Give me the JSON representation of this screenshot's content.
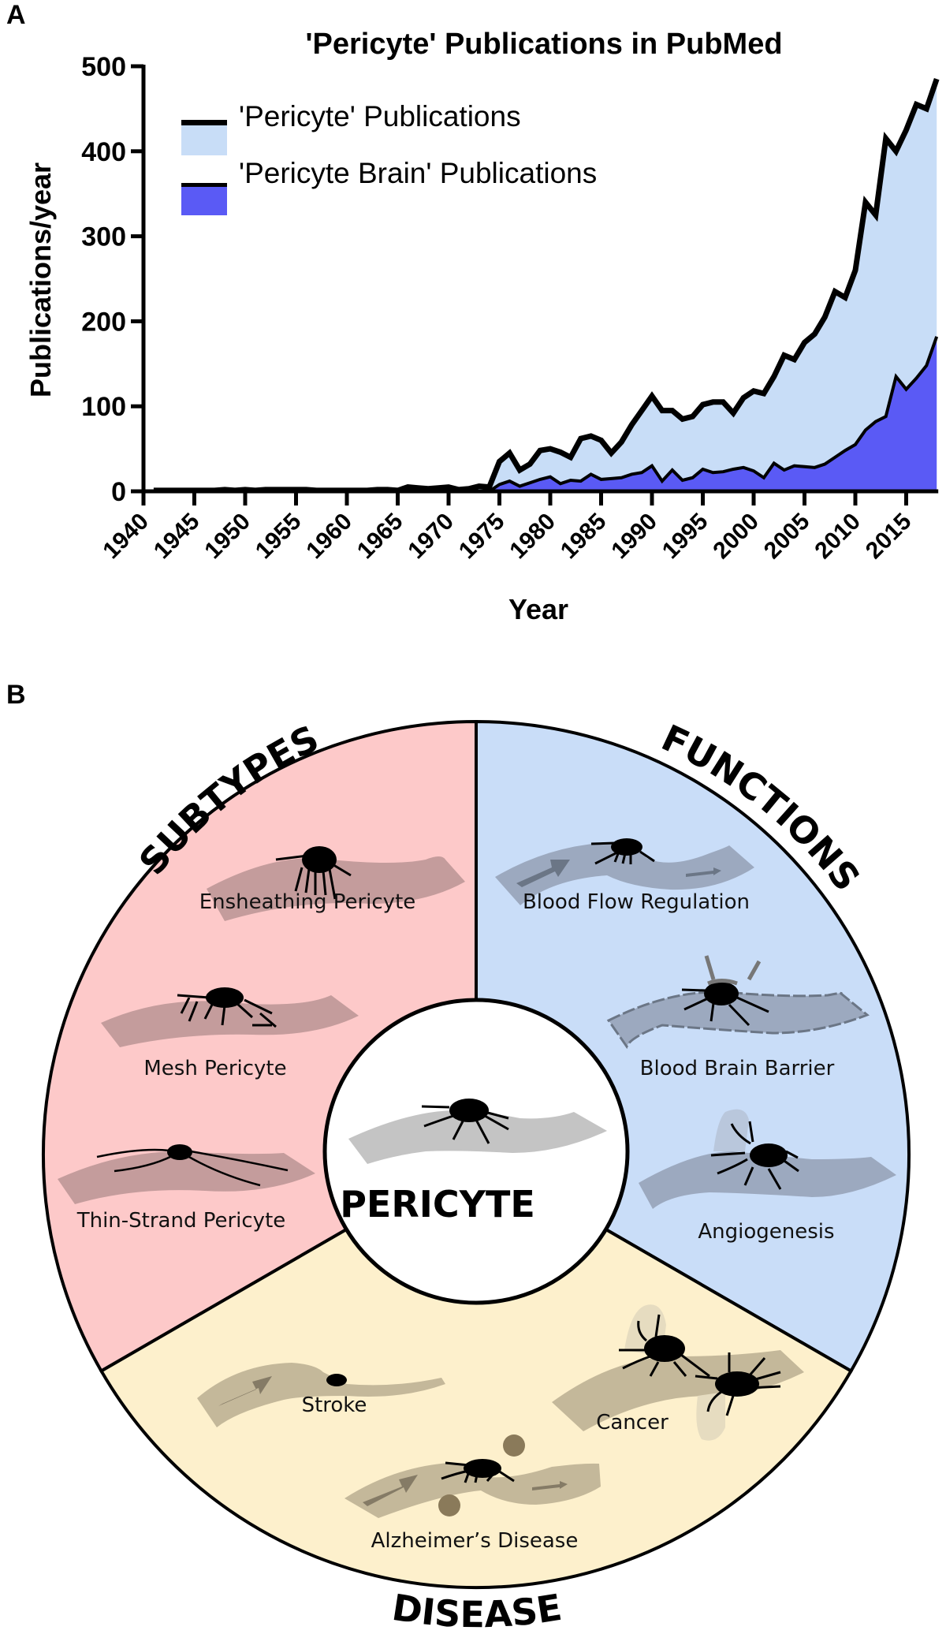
{
  "panels": {
    "a_letter": "A",
    "b_letter": "B"
  },
  "chart_data": {
    "type": "area",
    "title": "'Pericyte' Publications in PubMed",
    "xlabel": "Year",
    "ylabel": "Publications/year",
    "ylim": [
      0,
      500
    ],
    "xlim": [
      1940,
      2018
    ],
    "yticks": [
      0,
      100,
      200,
      300,
      400,
      500
    ],
    "xticks": [
      "1940",
      "1945",
      "1950",
      "1955",
      "1960",
      "1965",
      "1970",
      "1975",
      "1980",
      "1985",
      "1990",
      "1995",
      "2000",
      "2005",
      "2010",
      "2015"
    ],
    "grid": false,
    "legend_position": "top-left",
    "x": [
      1941,
      1942,
      1943,
      1944,
      1945,
      1946,
      1947,
      1948,
      1949,
      1950,
      1951,
      1952,
      1953,
      1954,
      1955,
      1956,
      1957,
      1958,
      1959,
      1960,
      1961,
      1962,
      1963,
      1964,
      1965,
      1966,
      1967,
      1968,
      1969,
      1970,
      1971,
      1972,
      1973,
      1974,
      1975,
      1976,
      1977,
      1978,
      1979,
      1980,
      1981,
      1982,
      1983,
      1984,
      1985,
      1986,
      1987,
      1988,
      1989,
      1990,
      1991,
      1992,
      1993,
      1994,
      1995,
      1996,
      1997,
      1998,
      1999,
      2000,
      2001,
      2002,
      2003,
      2004,
      2005,
      2006,
      2007,
      2008,
      2009,
      2010,
      2011,
      2012,
      2013,
      2014,
      2015,
      2016,
      2017,
      2018
    ],
    "series": [
      {
        "name": "'Pericyte' Publications",
        "color": "#c8ddf7",
        "line_color": "#000000",
        "values": [
          1,
          1,
          1,
          1,
          1,
          1,
          1,
          2,
          1,
          2,
          1,
          2,
          2,
          2,
          2,
          2,
          1,
          1,
          1,
          1,
          1,
          1,
          2,
          2,
          1,
          5,
          4,
          3,
          4,
          5,
          2,
          3,
          6,
          5,
          35,
          45,
          25,
          32,
          48,
          50,
          46,
          40,
          62,
          65,
          60,
          45,
          58,
          78,
          95,
          112,
          95,
          95,
          85,
          88,
          102,
          105,
          105,
          92,
          110,
          118,
          115,
          135,
          160,
          155,
          175,
          185,
          205,
          235,
          228,
          260,
          340,
          325,
          415,
          400,
          425,
          455,
          450,
          485
        ]
      },
      {
        "name": "'Pericyte Brain' Publications",
        "color": "#5a5af5",
        "line_color": "#000000",
        "values": [
          0,
          0,
          0,
          0,
          0,
          0,
          0,
          0,
          0,
          0,
          0,
          0,
          0,
          0,
          0,
          0,
          0,
          0,
          0,
          0,
          0,
          0,
          0,
          0,
          0,
          0,
          0,
          0,
          0,
          0,
          0,
          0,
          0,
          0,
          8,
          12,
          6,
          10,
          14,
          17,
          9,
          13,
          12,
          20,
          14,
          15,
          16,
          20,
          22,
          30,
          12,
          25,
          13,
          16,
          26,
          22,
          23,
          26,
          28,
          24,
          16,
          33,
          25,
          30,
          29,
          28,
          32,
          40,
          48,
          55,
          72,
          82,
          88,
          135,
          120,
          133,
          148,
          182
        ]
      }
    ]
  },
  "diagram": {
    "center_label": "PERICYTE",
    "segments": [
      {
        "title": "SUBTYPES",
        "color": "#fdc9c9",
        "items": [
          "Ensheathing Pericyte",
          "Mesh Pericyte",
          "Thin-Strand Pericyte"
        ]
      },
      {
        "title": "FUNCTIONS",
        "color": "#c9ddf8",
        "items": [
          "Blood Flow Regulation",
          "Blood Brain Barrier",
          "Angiogenesis"
        ]
      },
      {
        "title": "DISEASE",
        "color": "#fdf0cc",
        "items": [
          "Stroke",
          "Cancer",
          "Alzheimer’s Disease"
        ]
      }
    ]
  }
}
